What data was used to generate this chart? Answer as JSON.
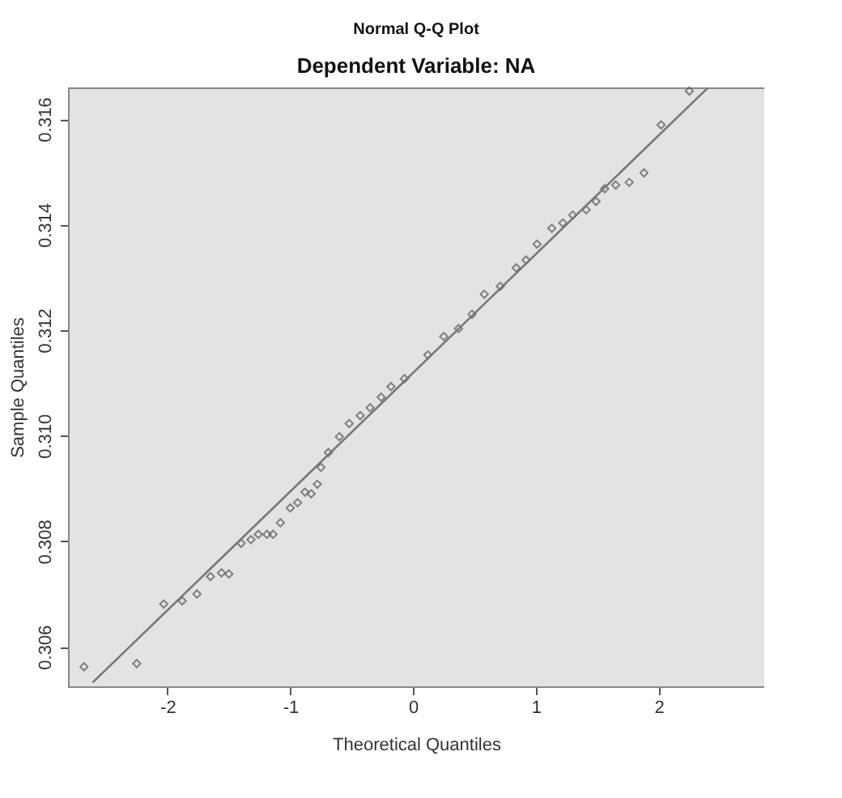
{
  "chart_data": {
    "type": "scatter",
    "title": "Normal Q-Q Plot",
    "subtitle": "Dependent Variable: NA",
    "xlabel": "Theoretical Quantiles",
    "ylabel": "Sample Quantiles",
    "xlim": [
      -2.81,
      2.86
    ],
    "xticks": [
      -2,
      -1,
      0,
      1,
      2
    ],
    "ylim": [
      0.30525,
      0.3166
    ],
    "yticks": [
      0.306,
      0.308,
      {
        "value": 0.31,
        "label": "0.310"
      },
      0.312,
      0.314,
      0.316
    ],
    "grid": false,
    "series": [
      {
        "marker": "diamond",
        "color": "#555555",
        "x": [
          -2.68,
          -2.25,
          -2.03,
          -1.88,
          -1.76,
          -1.65,
          -1.56,
          -1.5,
          -1.4,
          -1.32,
          -1.26,
          -1.19,
          -1.14,
          -1.08,
          -1.0,
          -0.94,
          -0.88,
          -0.83,
          -0.78,
          -0.75,
          -0.69,
          -0.6,
          -0.52,
          -0.43,
          -0.35,
          -0.26,
          -0.18,
          -0.07,
          0.12,
          0.25,
          0.37,
          0.48,
          0.58,
          0.71,
          0.84,
          0.92,
          1.01,
          1.13,
          1.22,
          1.3,
          1.41,
          1.49,
          1.56,
          1.65,
          1.76,
          1.88,
          2.02,
          2.25
        ],
        "values": [
          0.30562,
          0.30568,
          0.30681,
          0.30687,
          0.307,
          0.30733,
          0.3074,
          0.30738,
          0.30796,
          0.30803,
          0.30813,
          0.30813,
          0.30813,
          0.30835,
          0.30863,
          0.30873,
          0.30893,
          0.3089,
          0.30908,
          0.3094,
          0.30968,
          0.30998,
          0.31023,
          0.31038,
          0.31053,
          0.31073,
          0.31093,
          0.31108,
          0.31153,
          0.31188,
          0.31203,
          0.3123,
          0.31268,
          0.31283,
          0.31318,
          0.31333,
          0.31363,
          0.31393,
          0.31403,
          0.31418,
          0.31428,
          0.31444,
          0.31468,
          0.31475,
          0.3148,
          0.31498,
          0.31589,
          0.31653
        ]
      },
      {
        "type": "line",
        "color": "#777777",
        "x": [
          -2.61,
          2.4
        ],
        "values": [
          0.30532,
          0.31659
        ]
      }
    ]
  }
}
